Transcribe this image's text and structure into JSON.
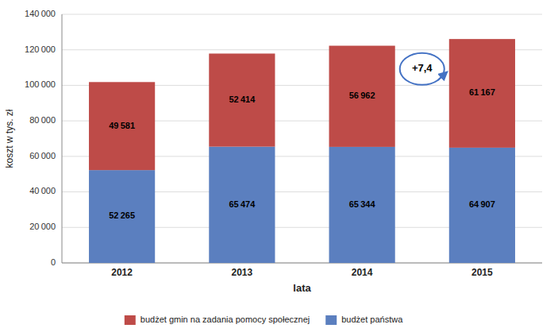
{
  "chart_data": {
    "type": "bar",
    "stacked": true,
    "categories": [
      "2012",
      "2013",
      "2014",
      "2015"
    ],
    "series": [
      {
        "name": "budżet państwa",
        "color": "#5B7FBF",
        "values": [
          52265,
          65474,
          65344,
          64907
        ],
        "value_labels": [
          "52 265",
          "65 474",
          "65 344",
          "64 907"
        ]
      },
      {
        "name": "budżet gmin na zadania pomocy społecznej",
        "color": "#BE4B48",
        "values": [
          49581,
          52414,
          56962,
          61167
        ],
        "value_labels": [
          "49 581",
          "52 414",
          "56 962",
          "61 167"
        ]
      }
    ],
    "xlabel": "lata",
    "ylabel": "koszt w tys. zł",
    "ylim": [
      0,
      140000
    ],
    "yticks": [
      0,
      {
        "value": 20000,
        "label": "20 000"
      },
      {
        "value": 40000,
        "label": "40 000"
      },
      {
        "value": 60000,
        "label": "60 000"
      },
      {
        "value": 80000,
        "label": "80 000"
      },
      {
        "value": 100000,
        "label": "100 000"
      },
      {
        "value": 120000,
        "label": "120 000"
      },
      {
        "value": 140000,
        "label": "140 000"
      }
    ],
    "grid": true,
    "data_labels": true,
    "legend": "bottom",
    "annotation": "+7,4"
  }
}
